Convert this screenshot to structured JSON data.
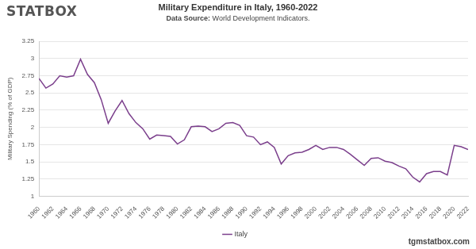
{
  "chart_data": {
    "type": "line",
    "logo": "STATBOX",
    "title": "Military Expenditure in Italy, 1960-2022",
    "subtitle": "Data Source: World Development Indicators.",
    "y_label": "Military Spending (% of GDP)",
    "footer": "tgmstatbox.com",
    "x": [
      1960,
      1961,
      1962,
      1963,
      1964,
      1965,
      1966,
      1967,
      1968,
      1969,
      1970,
      1971,
      1972,
      1973,
      1974,
      1975,
      1976,
      1977,
      1978,
      1979,
      1980,
      1981,
      1982,
      1983,
      1984,
      1985,
      1986,
      1987,
      1988,
      1989,
      1990,
      1991,
      1992,
      1993,
      1994,
      1995,
      1996,
      1997,
      1998,
      1999,
      2000,
      2001,
      2002,
      2003,
      2004,
      2005,
      2006,
      2007,
      2008,
      2009,
      2010,
      2011,
      2012,
      2013,
      2014,
      2015,
      2016,
      2017,
      2018,
      2019,
      2020,
      2021,
      2022
    ],
    "series": [
      {
        "name": "Italy",
        "color": "#7b3f8c",
        "values": [
          2.71,
          2.57,
          2.63,
          2.75,
          2.73,
          2.75,
          2.99,
          2.77,
          2.65,
          2.4,
          2.06,
          2.24,
          2.39,
          2.2,
          2.07,
          1.98,
          1.83,
          1.89,
          1.88,
          1.87,
          1.76,
          1.82,
          2.01,
          2.02,
          2.01,
          1.94,
          1.98,
          2.06,
          2.07,
          2.03,
          1.88,
          1.86,
          1.75,
          1.79,
          1.71,
          1.47,
          1.59,
          1.63,
          1.64,
          1.68,
          1.74,
          1.68,
          1.71,
          1.71,
          1.68,
          1.61,
          1.53,
          1.45,
          1.55,
          1.56,
          1.51,
          1.49,
          1.44,
          1.4,
          1.28,
          1.21,
          1.33,
          1.36,
          1.36,
          1.31,
          1.74,
          1.72,
          1.68
        ]
      }
    ],
    "xlim": [
      1960,
      2022
    ],
    "xticks": [
      1960,
      1962,
      1964,
      1966,
      1968,
      1970,
      1972,
      1974,
      1976,
      1978,
      1980,
      1982,
      1984,
      1986,
      1988,
      1990,
      1992,
      1994,
      1996,
      1998,
      2000,
      2002,
      2004,
      2006,
      2008,
      2010,
      2012,
      2014,
      2016,
      2018,
      2020,
      2022
    ],
    "ylim": [
      1,
      3.25
    ],
    "yticks": [
      1,
      1.25,
      1.5,
      1.75,
      2,
      2.25,
      2.5,
      2.75,
      3,
      3.25
    ],
    "grid": true,
    "legend": "bottom"
  }
}
